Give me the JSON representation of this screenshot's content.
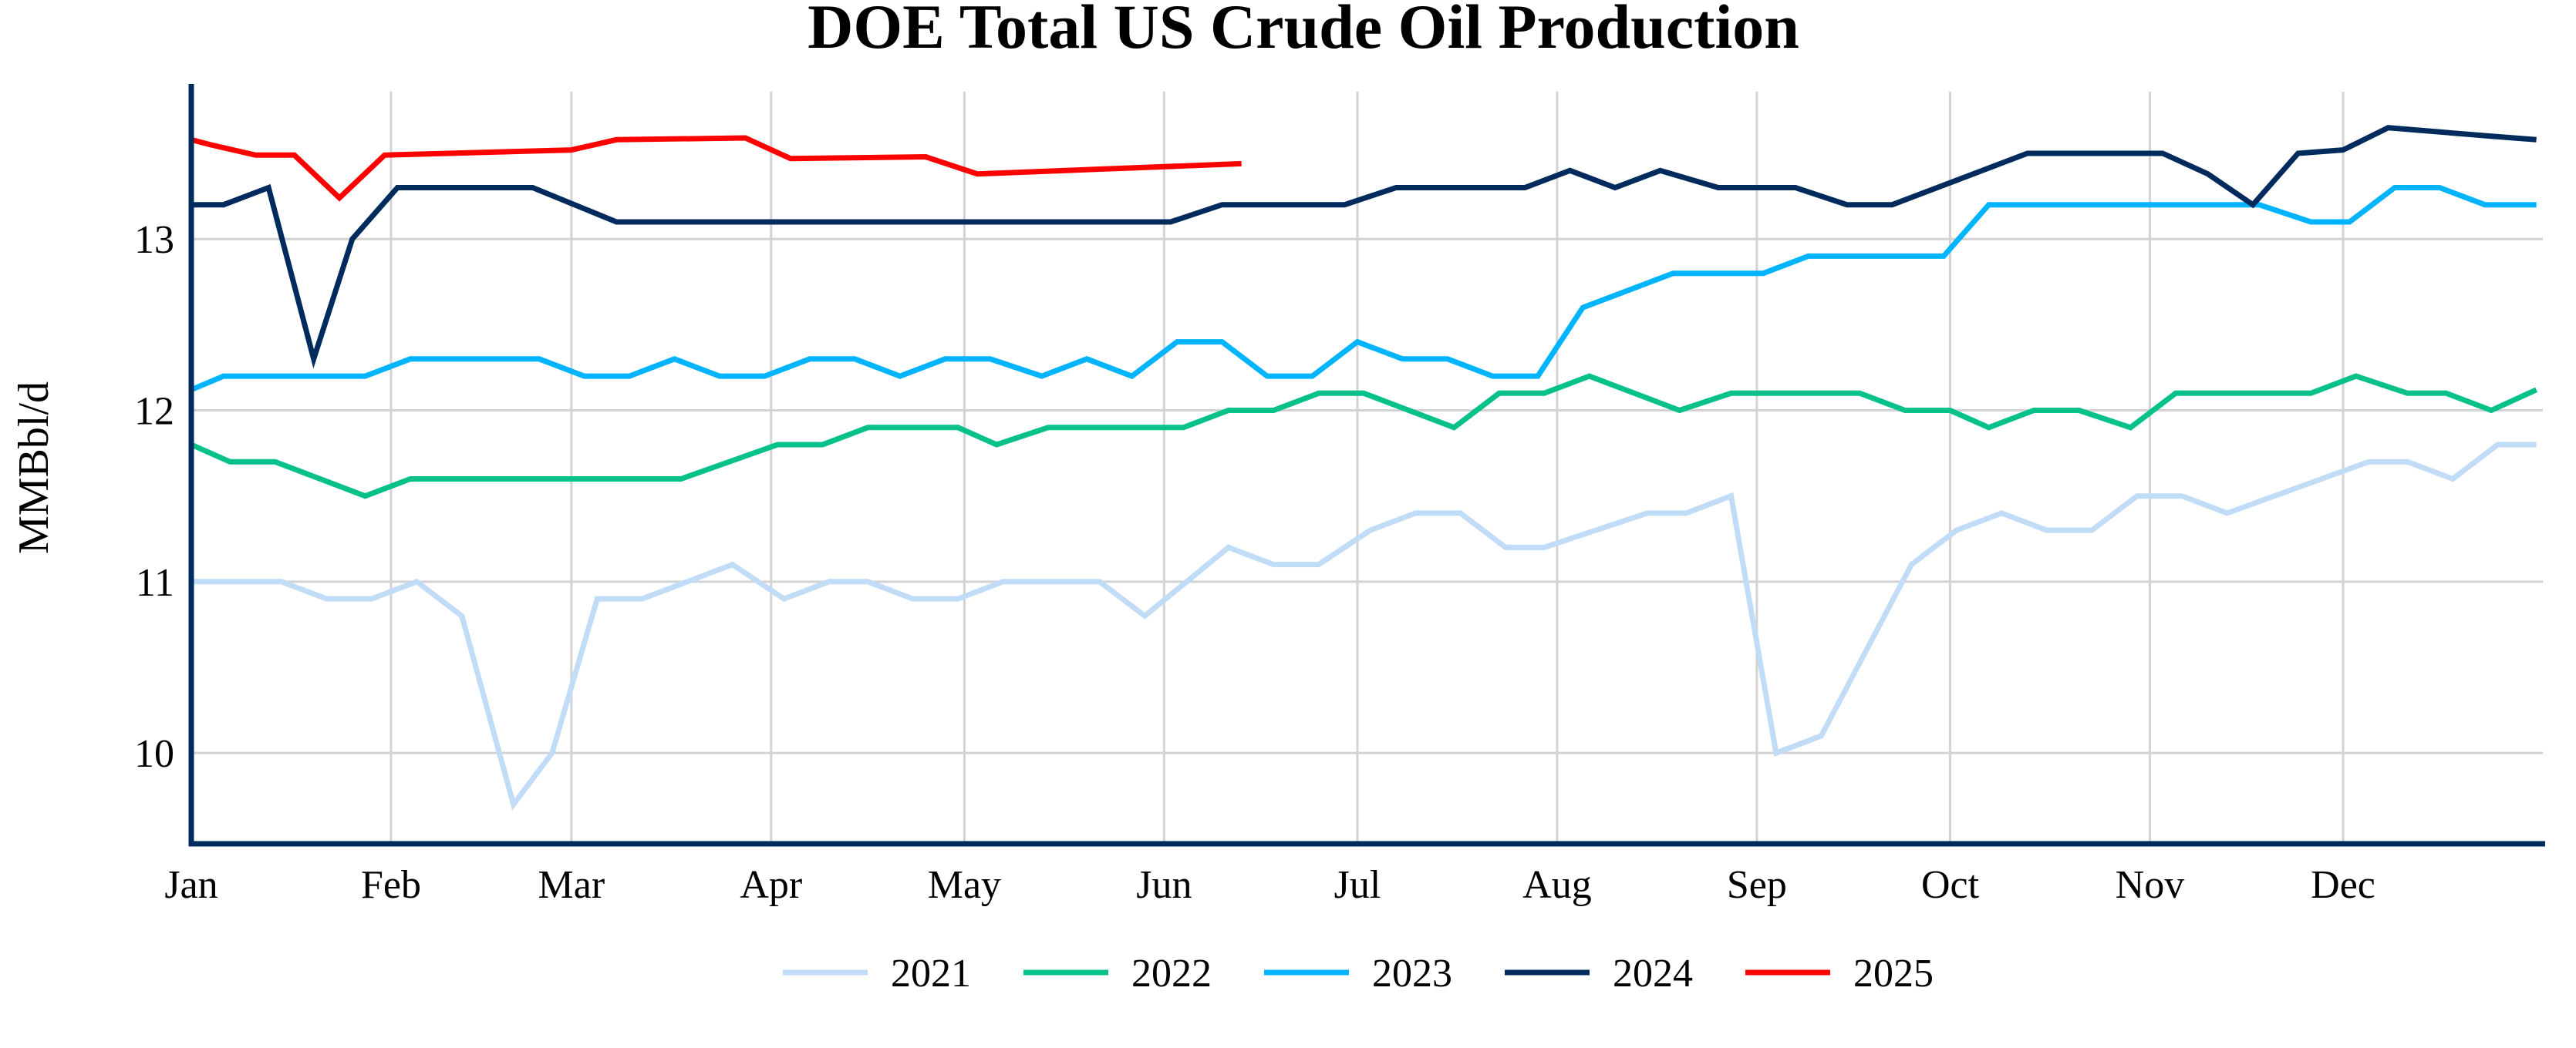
{
  "chart_data": {
    "type": "line",
    "title": "DOE Total US Crude Oil Production",
    "xlabel": "",
    "ylabel": "MMBbl/d",
    "x_tick_labels": [
      "Jan",
      "Feb",
      "Mar",
      "Apr",
      "May",
      "Jun",
      "Jul",
      "Aug",
      "Sep",
      "Oct",
      "Nov",
      "Dec"
    ],
    "y_ticks": [
      10,
      11,
      12,
      13
    ],
    "ylim": [
      9.47,
      13.86
    ],
    "grid": true,
    "legend_placement": "bottom",
    "series": [
      {
        "name": "2021",
        "color": "#c1dcf6",
        "points": [
          [
            "01-01",
            11.0
          ],
          [
            "01-15",
            11.0
          ],
          [
            "01-22",
            10.9
          ],
          [
            "01-29",
            10.9
          ],
          [
            "02-05",
            11.0
          ],
          [
            "02-12",
            10.8
          ],
          [
            "02-20",
            9.7
          ],
          [
            "02-26",
            10.0
          ],
          [
            "03-05",
            10.9
          ],
          [
            "03-12",
            10.9
          ],
          [
            "03-26",
            11.1
          ],
          [
            "04-03",
            10.9
          ],
          [
            "04-10",
            11.0
          ],
          [
            "04-16",
            11.0
          ],
          [
            "04-23",
            10.9
          ],
          [
            "04-30",
            10.9
          ],
          [
            "05-07",
            11.0
          ],
          [
            "05-22",
            11.0
          ],
          [
            "05-29",
            10.8
          ],
          [
            "06-11",
            11.2
          ],
          [
            "06-18",
            11.1
          ],
          [
            "06-25",
            11.1
          ],
          [
            "07-03",
            11.3
          ],
          [
            "07-10",
            11.4
          ],
          [
            "07-17",
            11.4
          ],
          [
            "07-24",
            11.2
          ],
          [
            "07-30",
            11.2
          ],
          [
            "08-15",
            11.4
          ],
          [
            "08-21",
            11.4
          ],
          [
            "08-28",
            11.5
          ],
          [
            "09-04",
            10.0
          ],
          [
            "09-11",
            10.1
          ],
          [
            "09-25",
            11.1
          ],
          [
            "10-02",
            11.3
          ],
          [
            "10-09",
            11.4
          ],
          [
            "10-16",
            11.3
          ],
          [
            "10-23",
            11.3
          ],
          [
            "10-30",
            11.5
          ],
          [
            "11-06",
            11.5
          ],
          [
            "11-13",
            11.4
          ],
          [
            "12-05",
            11.7
          ],
          [
            "12-11",
            11.7
          ],
          [
            "12-18",
            11.6
          ],
          [
            "12-25",
            11.8
          ],
          [
            "12-31",
            11.8
          ]
        ]
      },
      {
        "name": "2022",
        "color": "#06c18a",
        "points": [
          [
            "01-01",
            11.8
          ],
          [
            "01-07",
            11.7
          ],
          [
            "01-14",
            11.7
          ],
          [
            "01-28",
            11.5
          ],
          [
            "02-04",
            11.6
          ],
          [
            "03-18",
            11.6
          ],
          [
            "04-02",
            11.8
          ],
          [
            "04-09",
            11.8
          ],
          [
            "04-16",
            11.9
          ],
          [
            "04-30",
            11.9
          ],
          [
            "05-06",
            11.8
          ],
          [
            "05-14",
            11.9
          ],
          [
            "06-04",
            11.9
          ],
          [
            "06-11",
            12.0
          ],
          [
            "06-18",
            12.0
          ],
          [
            "06-25",
            12.1
          ],
          [
            "07-02",
            12.1
          ],
          [
            "07-16",
            11.9
          ],
          [
            "07-23",
            12.1
          ],
          [
            "07-30",
            12.1
          ],
          [
            "08-06",
            12.2
          ],
          [
            "08-20",
            12.0
          ],
          [
            "08-28",
            12.1
          ],
          [
            "09-17",
            12.1
          ],
          [
            "09-24",
            12.0
          ],
          [
            "10-01",
            12.0
          ],
          [
            "10-07",
            11.9
          ],
          [
            "10-14",
            12.0
          ],
          [
            "10-21",
            12.0
          ],
          [
            "10-29",
            11.9
          ],
          [
            "11-05",
            12.1
          ],
          [
            "11-26",
            12.1
          ],
          [
            "12-03",
            12.2
          ],
          [
            "12-11",
            12.1
          ],
          [
            "12-17",
            12.1
          ],
          [
            "12-24",
            12.0
          ],
          [
            "12-31",
            12.12
          ]
        ]
      },
      {
        "name": "2023",
        "color": "#00b4ff",
        "points": [
          [
            "01-01",
            12.12
          ],
          [
            "01-06",
            12.2
          ],
          [
            "01-28",
            12.2
          ],
          [
            "02-04",
            12.3
          ],
          [
            "02-24",
            12.3
          ],
          [
            "03-03",
            12.2
          ],
          [
            "03-10",
            12.2
          ],
          [
            "03-17",
            12.3
          ],
          [
            "03-24",
            12.2
          ],
          [
            "03-31",
            12.2
          ],
          [
            "04-07",
            12.3
          ],
          [
            "04-14",
            12.3
          ],
          [
            "04-21",
            12.2
          ],
          [
            "04-28",
            12.3
          ],
          [
            "05-05",
            12.3
          ],
          [
            "05-13",
            12.2
          ],
          [
            "05-20",
            12.3
          ],
          [
            "05-27",
            12.2
          ],
          [
            "06-03",
            12.4
          ],
          [
            "06-10",
            12.4
          ],
          [
            "06-17",
            12.2
          ],
          [
            "06-24",
            12.2
          ],
          [
            "07-01",
            12.4
          ],
          [
            "07-08",
            12.3
          ],
          [
            "07-15",
            12.3
          ],
          [
            "07-22",
            12.2
          ],
          [
            "07-29",
            12.2
          ],
          [
            "08-05",
            12.6
          ],
          [
            "08-19",
            12.8
          ],
          [
            "09-02",
            12.8
          ],
          [
            "09-09",
            12.9
          ],
          [
            "09-30",
            12.9
          ],
          [
            "10-07",
            13.2
          ],
          [
            "11-18",
            13.2
          ],
          [
            "11-26",
            13.1
          ],
          [
            "12-02",
            13.1
          ],
          [
            "12-09",
            13.3
          ],
          [
            "12-16",
            13.3
          ],
          [
            "12-23",
            13.2
          ],
          [
            "12-31",
            13.2
          ]
        ]
      },
      {
        "name": "2024",
        "color": "#002b5c",
        "points": [
          [
            "01-01",
            13.2
          ],
          [
            "01-06",
            13.2
          ],
          [
            "01-13",
            13.3
          ],
          [
            "01-20",
            12.3
          ],
          [
            "01-26",
            13.0
          ],
          [
            "02-02",
            13.3
          ],
          [
            "02-23",
            13.3
          ],
          [
            "03-08",
            13.1
          ],
          [
            "06-02",
            13.1
          ],
          [
            "06-10",
            13.2
          ],
          [
            "06-29",
            13.2
          ],
          [
            "07-07",
            13.3
          ],
          [
            "07-27",
            13.3
          ],
          [
            "08-03",
            13.4
          ],
          [
            "08-10",
            13.3
          ],
          [
            "08-17",
            13.4
          ],
          [
            "08-26",
            13.3
          ],
          [
            "09-07",
            13.3
          ],
          [
            "09-15",
            13.2
          ],
          [
            "09-22",
            13.2
          ],
          [
            "10-13",
            13.5
          ],
          [
            "11-03",
            13.5
          ],
          [
            "11-10",
            13.38
          ],
          [
            "11-17",
            13.2
          ],
          [
            "11-24",
            13.5
          ],
          [
            "12-01",
            13.52
          ],
          [
            "12-08",
            13.65
          ],
          [
            "12-24",
            13.6
          ],
          [
            "12-31",
            13.58
          ]
        ]
      },
      {
        "name": "2025",
        "color": "#ff0000",
        "points": [
          [
            "01-01",
            13.58
          ],
          [
            "01-04",
            13.55
          ],
          [
            "01-11",
            13.49
          ],
          [
            "01-17",
            13.49
          ],
          [
            "01-24",
            13.24
          ],
          [
            "01-31",
            13.49
          ],
          [
            "03-01",
            13.52
          ],
          [
            "03-08",
            13.58
          ],
          [
            "03-28",
            13.59
          ],
          [
            "04-04",
            13.47
          ],
          [
            "04-25",
            13.48
          ],
          [
            "05-03",
            13.38
          ],
          [
            "06-13",
            13.44
          ]
        ]
      }
    ]
  }
}
